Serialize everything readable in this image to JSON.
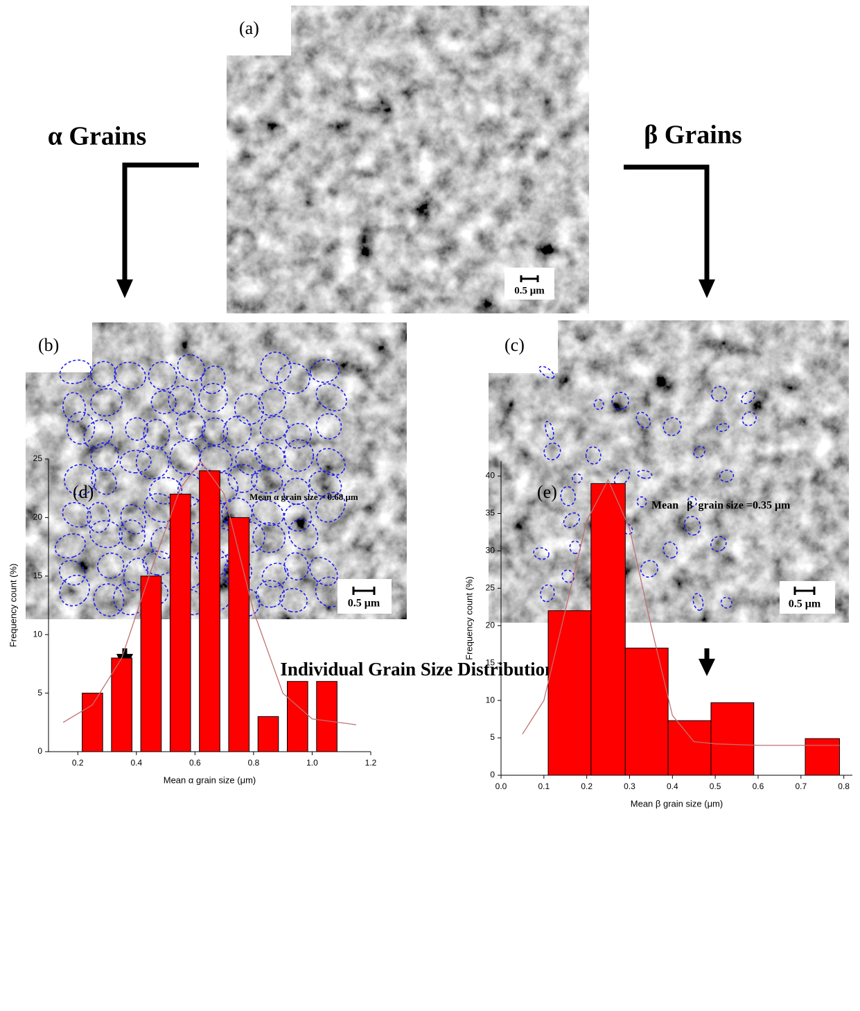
{
  "panels": {
    "a": "(a)",
    "b": "(b)",
    "c": "(c)"
  },
  "arrow_labels": {
    "alpha": "α Grains",
    "beta": "β Grains"
  },
  "section_title": "Individual Grain Size Distributions",
  "scale_bars": [
    "0.5 μm",
    "0.5 μm",
    "0.5 μm"
  ],
  "chart_data": [
    {
      "type": "histogram",
      "panel_label": "(d)",
      "annotation": "Mean α grain size = 0.68 μm",
      "x_label": "Mean α grain size (μm)",
      "y_label": "Frequency count (%)",
      "bins": [
        0.2,
        0.3,
        0.4,
        0.5,
        0.6,
        0.7,
        0.8,
        0.9,
        1.0,
        1.1
      ],
      "counts": [
        5,
        8,
        15,
        22,
        24,
        20,
        3,
        6,
        6
      ],
      "color": "#ff0000",
      "fit_color": "#c07070",
      "fit": {
        "x": [
          0.15,
          0.25,
          0.35,
          0.45,
          0.55,
          0.62,
          0.7,
          0.8,
          0.9,
          1.0,
          1.15
        ],
        "y": [
          2.5,
          4,
          8,
          15.5,
          22.5,
          24.8,
          22,
          12,
          5,
          2.8,
          2.3
        ]
      },
      "xlim": [
        0.1,
        1.2
      ],
      "ylim": [
        0,
        25
      ],
      "xticks": [
        0.2,
        0.4,
        0.6,
        0.8,
        {
          "value": 1,
          "label": "1.0"
        },
        1.2
      ],
      "yticks": [
        0,
        5,
        10,
        15,
        20,
        25
      ]
    },
    {
      "type": "histogram",
      "panel_label": "(e)",
      "annotation": "Mean   β  grain size =0.35 μm",
      "x_label": "Mean β grain size (μm)",
      "y_label": "Frequency count (%)",
      "bins": [
        0.11,
        0.21,
        0.29,
        0.39,
        0.49,
        0.59,
        0.71,
        0.79
      ],
      "counts": [
        22,
        39,
        17,
        7.3,
        9.7,
        0,
        4.9
      ],
      "color": "#ff0000",
      "fit_color": "#c07070",
      "fit": {
        "x": [
          0.05,
          0.1,
          0.15,
          0.2,
          0.25,
          0.3,
          0.35,
          0.4,
          0.45,
          0.5,
          0.6,
          0.79
        ],
        "y": [
          5.5,
          10,
          22,
          34,
          39.5,
          33,
          20,
          8,
          4.5,
          4.2,
          4,
          4
        ]
      },
      "xlim": [
        0,
        0.82
      ],
      "ylim": [
        0,
        42
      ],
      "xticks": [
        {
          "value": 0,
          "label": "0.0"
        },
        0.1,
        0.2,
        0.3,
        0.4,
        0.5,
        0.6,
        0.7,
        0.8
      ],
      "yticks": [
        0,
        5,
        10,
        15,
        20,
        25,
        30,
        35,
        40
      ]
    }
  ]
}
